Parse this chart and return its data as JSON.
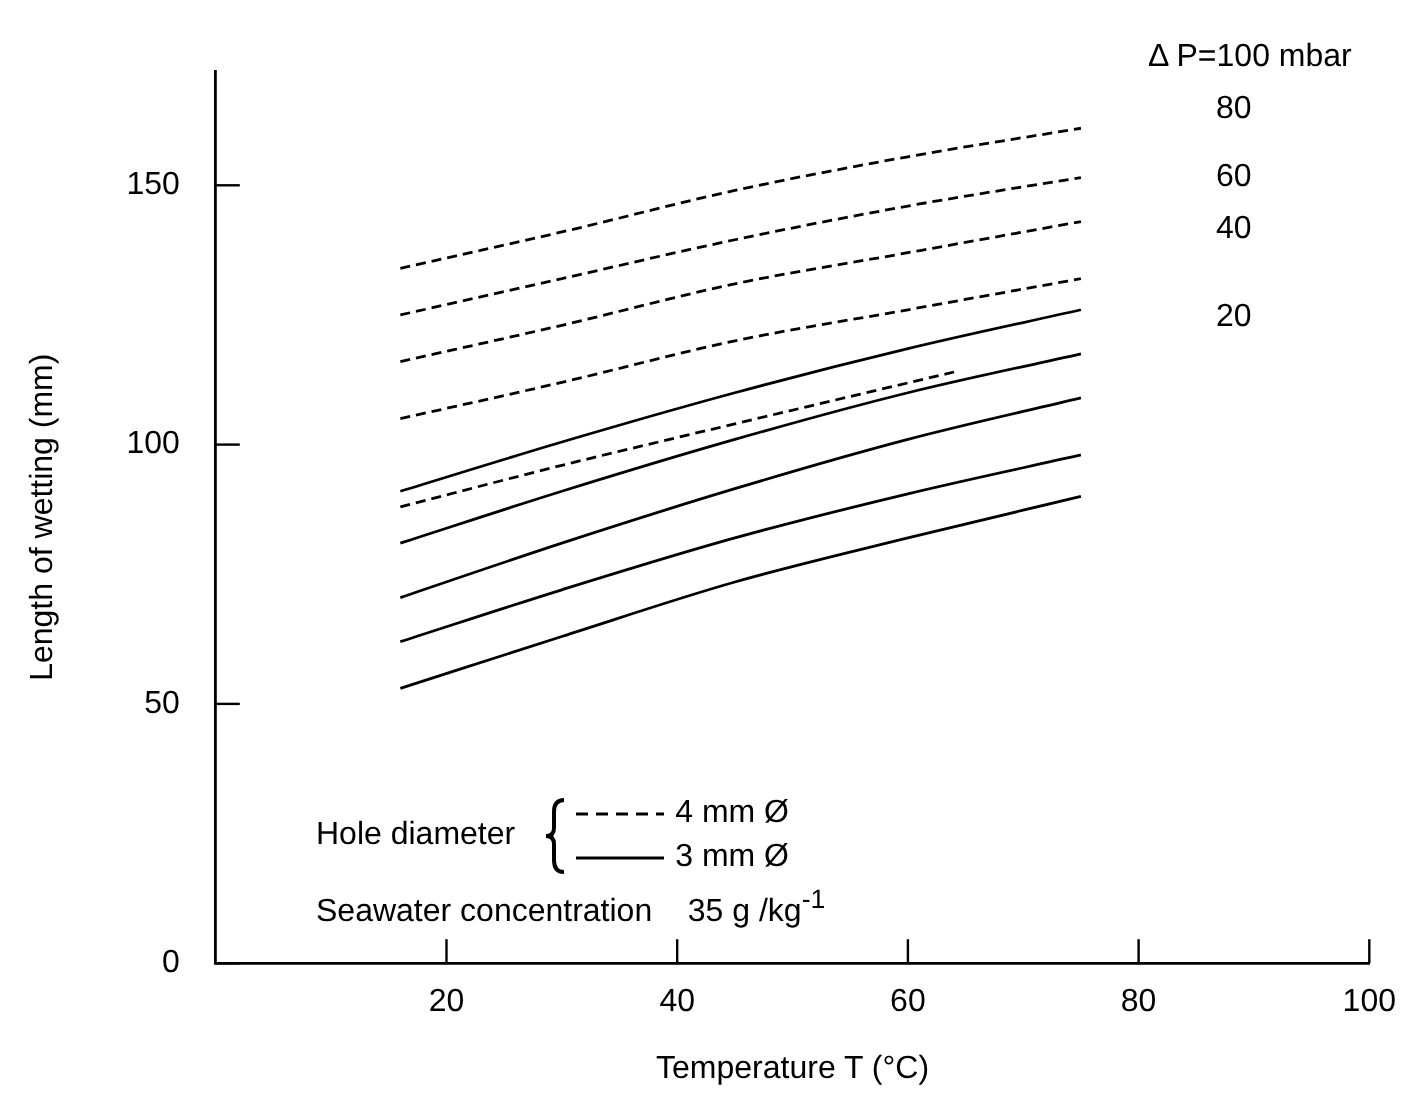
{
  "chart_data": {
    "type": "line",
    "xlabel": "Temperature T (°C)",
    "ylabel": "Length of wetting (mm)",
    "xlim": [
      0,
      100
    ],
    "xticks": [
      20,
      40,
      60,
      80,
      100
    ],
    "ylim": [
      0,
      172
    ],
    "yticks": [
      0,
      50,
      100,
      150
    ],
    "grid": false,
    "marker": "none",
    "legend": "bottom",
    "legend_title": "Hole diameter",
    "x": [
      16,
      30,
      45,
      60,
      75
    ],
    "series": [
      {
        "name": "4 mm Ø",
        "color": "#000000",
        "line_style": "dashed",
        "values": [
          134,
          141,
          149,
          155.5,
          161
        ]
      },
      {
        "color": "#000000",
        "line_style": "dashed",
        "values": [
          125,
          132,
          139.5,
          146,
          151.5
        ]
      },
      {
        "color": "#000000",
        "line_style": "dashed",
        "values": [
          116,
          123,
          131,
          137,
          143
        ]
      },
      {
        "color": "#000000",
        "line_style": "dashed",
        "values": [
          105,
          112,
          120,
          126,
          132
        ]
      },
      {
        "color": "#000000",
        "line_style": "dashed",
        "x": [
          16,
          30,
          45,
          64
        ],
        "values": [
          88,
          96,
          104,
          114
        ]
      },
      {
        "name": "3 mm Ø",
        "color": "#000000",
        "line_style": "solid",
        "values": [
          91,
          100.5,
          110,
          118.5,
          126
        ]
      },
      {
        "color": "#000000",
        "line_style": "solid",
        "values": [
          81,
          91,
          101,
          110,
          117.5
        ]
      },
      {
        "color": "#000000",
        "line_style": "solid",
        "values": [
          70.5,
          81,
          91.5,
          101,
          109
        ]
      },
      {
        "color": "#000000",
        "line_style": "solid",
        "values": [
          62,
          72,
          82,
          90.5,
          98
        ]
      },
      {
        "color": "#000000",
        "line_style": "solid",
        "values": [
          53,
          63,
          73.5,
          82,
          90
        ]
      }
    ],
    "annotations": [
      "Δ P=100 mbar",
      "80",
      "60",
      "40",
      "20",
      "Seawater concentration 35 g /kg$^{-1}$"
    ]
  }
}
